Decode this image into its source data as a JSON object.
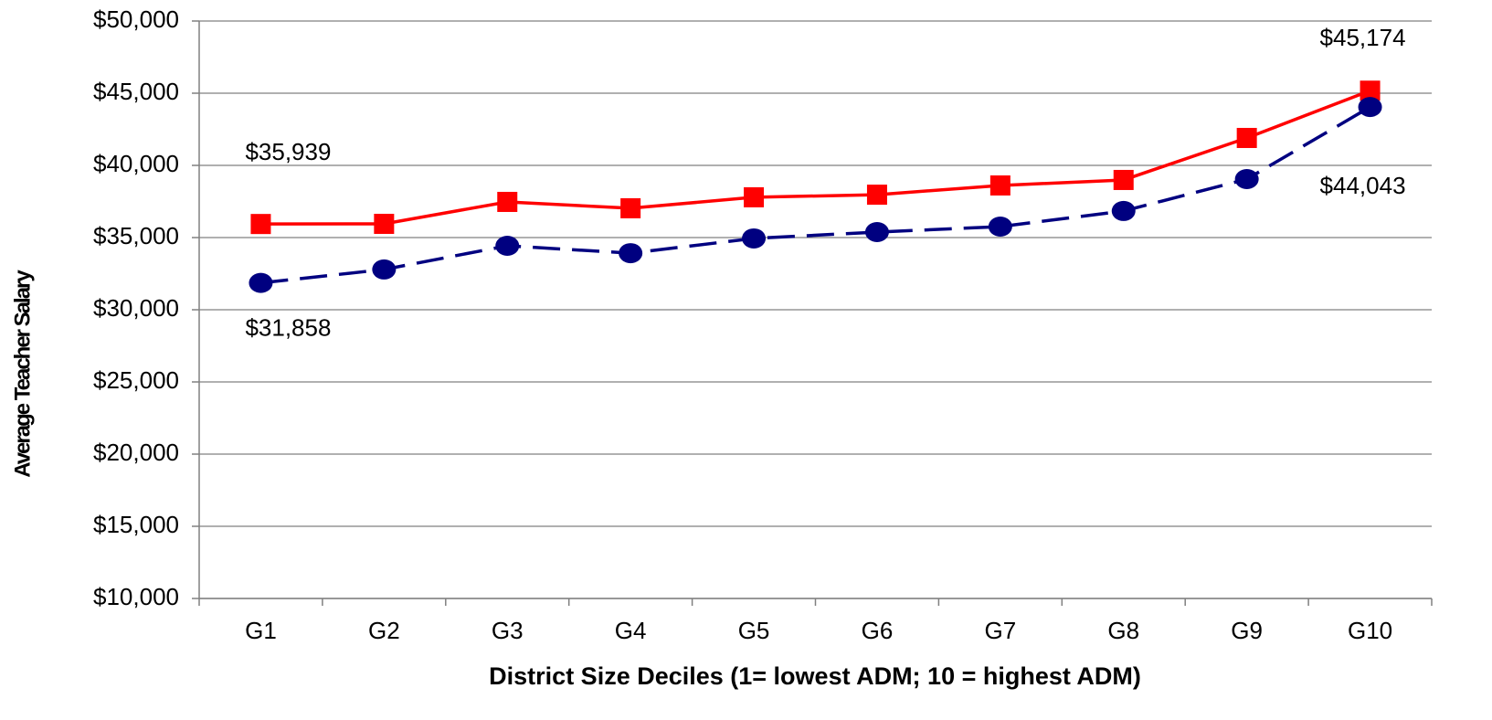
{
  "chart_data": {
    "type": "line",
    "x_label": "District Size Deciles (1= lowest ADM; 10 = highest ADM)",
    "y_label": "Average Teacher Salary",
    "categories": [
      "G1",
      "G2",
      "G3",
      "G4",
      "G5",
      "G6",
      "G7",
      "G8",
      "G9",
      "G10"
    ],
    "series": [
      {
        "color": "#ff0000",
        "marker": "square",
        "dash": false,
        "values": [
          35939,
          35950,
          37470,
          37030,
          37790,
          37970,
          38610,
          38990,
          41900,
          45174
        ],
        "value_labels": [
          "$35,939",
          null,
          null,
          null,
          null,
          null,
          null,
          null,
          null,
          "$45,174"
        ]
      },
      {
        "color": "#000080",
        "marker": "circle",
        "dash": true,
        "values": [
          31858,
          32790,
          34430,
          33920,
          34940,
          35380,
          35760,
          36840,
          39050,
          44043
        ],
        "value_labels": [
          "$31,858",
          null,
          null,
          null,
          null,
          null,
          null,
          null,
          null,
          "$44,043"
        ]
      }
    ],
    "ylim": [
      10000,
      50000
    ],
    "yticks": [
      {
        "value": 10000,
        "label": "$10,000"
      },
      {
        "value": 15000,
        "label": "$15,000"
      },
      {
        "value": 20000,
        "label": "$20,000"
      },
      {
        "value": 25000,
        "label": "$25,000"
      },
      {
        "value": 30000,
        "label": "$30,000"
      },
      {
        "value": 35000,
        "label": "$35,000"
      },
      {
        "value": 40000,
        "label": "$40,000"
      },
      {
        "value": 45000,
        "label": "$45,000"
      },
      {
        "value": 50000,
        "label": "$50,000"
      }
    ],
    "grid": true
  }
}
